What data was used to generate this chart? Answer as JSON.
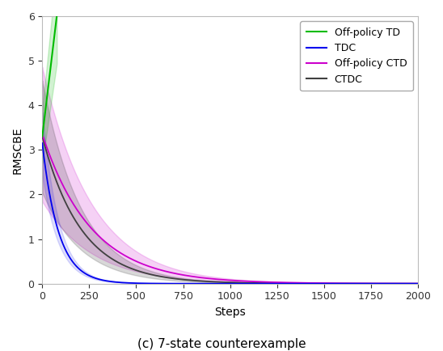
{
  "title": "(c) 7-state counterexample",
  "xlabel": "Steps",
  "ylabel": "RMSCBE",
  "xlim": [
    0,
    2000
  ],
  "ylim": [
    0,
    6
  ],
  "yticks": [
    0,
    1,
    2,
    3,
    4,
    5,
    6
  ],
  "xticks": [
    0,
    250,
    500,
    750,
    1000,
    1250,
    1500,
    1750,
    2000
  ],
  "colors": {
    "off_policy_td": "#00bb00",
    "tdc": "#0000ee",
    "off_policy_ctd": "#cc00cc",
    "ctdc": "#404040"
  },
  "labels": {
    "off_policy_td": "Off-policy TD",
    "tdc": "TDC",
    "off_policy_ctd": "Off-policy CTD",
    "ctdc": "CTDC"
  },
  "n_steps": 2001,
  "figsize": [
    5.48,
    4.34
  ],
  "dpi": 100
}
